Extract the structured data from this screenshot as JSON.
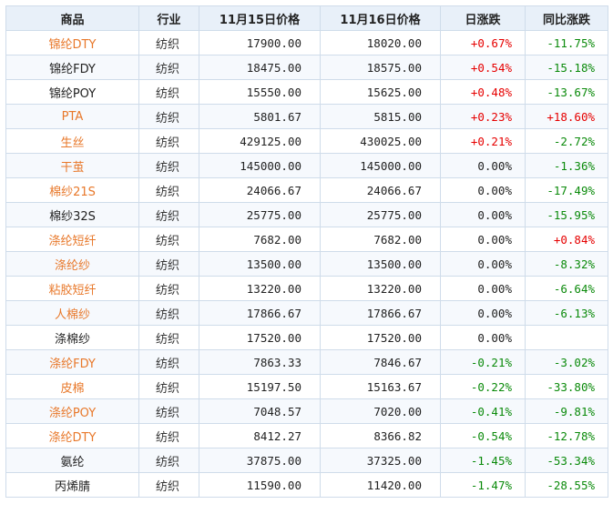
{
  "headers": [
    "商品",
    "行业",
    "11月15日价格",
    "11月16日价格",
    "日涨跌",
    "同比涨跌"
  ],
  "rows": [
    {
      "name": "锦纶DTY",
      "industry": "纺织",
      "p15": "17900.00",
      "p16": "18020.00",
      "daily": "+0.67%",
      "yoy": "-11.75%",
      "name_color": "#e8782a",
      "daily_dir": "up",
      "yoy_dir": "down"
    },
    {
      "name": "锦纶FDY",
      "industry": "纺织",
      "p15": "18475.00",
      "p16": "18575.00",
      "daily": "+0.54%",
      "yoy": "-15.18%",
      "name_color": "#222222",
      "daily_dir": "up",
      "yoy_dir": "down"
    },
    {
      "name": "锦纶POY",
      "industry": "纺织",
      "p15": "15550.00",
      "p16": "15625.00",
      "daily": "+0.48%",
      "yoy": "-13.67%",
      "name_color": "#222222",
      "daily_dir": "up",
      "yoy_dir": "down"
    },
    {
      "name": "PTA",
      "industry": "纺织",
      "p15": "5801.67",
      "p16": "5815.00",
      "daily": "+0.23%",
      "yoy": "+18.60%",
      "name_color": "#e8782a",
      "daily_dir": "up",
      "yoy_dir": "up"
    },
    {
      "name": "生丝",
      "industry": "纺织",
      "p15": "429125.00",
      "p16": "430025.00",
      "daily": "+0.21%",
      "yoy": "-2.72%",
      "name_color": "#e8782a",
      "daily_dir": "up",
      "yoy_dir": "down"
    },
    {
      "name": "干茧",
      "industry": "纺织",
      "p15": "145000.00",
      "p16": "145000.00",
      "daily": "0.00%",
      "yoy": "-1.36%",
      "name_color": "#e8782a",
      "daily_dir": "flat",
      "yoy_dir": "down"
    },
    {
      "name": "棉纱21S",
      "industry": "纺织",
      "p15": "24066.67",
      "p16": "24066.67",
      "daily": "0.00%",
      "yoy": "-17.49%",
      "name_color": "#e8782a",
      "daily_dir": "flat",
      "yoy_dir": "down"
    },
    {
      "name": "棉纱32S",
      "industry": "纺织",
      "p15": "25775.00",
      "p16": "25775.00",
      "daily": "0.00%",
      "yoy": "-15.95%",
      "name_color": "#222222",
      "daily_dir": "flat",
      "yoy_dir": "down"
    },
    {
      "name": "涤纶短纤",
      "industry": "纺织",
      "p15": "7682.00",
      "p16": "7682.00",
      "daily": "0.00%",
      "yoy": "+0.84%",
      "name_color": "#e8782a",
      "daily_dir": "flat",
      "yoy_dir": "up"
    },
    {
      "name": "涤纶纱",
      "industry": "纺织",
      "p15": "13500.00",
      "p16": "13500.00",
      "daily": "0.00%",
      "yoy": "-8.32%",
      "name_color": "#e8782a",
      "daily_dir": "flat",
      "yoy_dir": "down"
    },
    {
      "name": "粘胶短纤",
      "industry": "纺织",
      "p15": "13220.00",
      "p16": "13220.00",
      "daily": "0.00%",
      "yoy": "-6.64%",
      "name_color": "#e8782a",
      "daily_dir": "flat",
      "yoy_dir": "down"
    },
    {
      "name": "人棉纱",
      "industry": "纺织",
      "p15": "17866.67",
      "p16": "17866.67",
      "daily": "0.00%",
      "yoy": "-6.13%",
      "name_color": "#e8782a",
      "daily_dir": "flat",
      "yoy_dir": "down"
    },
    {
      "name": "涤棉纱",
      "industry": "纺织",
      "p15": "17520.00",
      "p16": "17520.00",
      "daily": "0.00%",
      "yoy": "",
      "name_color": "#222222",
      "daily_dir": "flat",
      "yoy_dir": "flat"
    },
    {
      "name": "涤纶FDY",
      "industry": "纺织",
      "p15": "7863.33",
      "p16": "7846.67",
      "daily": "-0.21%",
      "yoy": "-3.02%",
      "name_color": "#e8782a",
      "daily_dir": "down",
      "yoy_dir": "down"
    },
    {
      "name": "皮棉",
      "industry": "纺织",
      "p15": "15197.50",
      "p16": "15163.67",
      "daily": "-0.22%",
      "yoy": "-33.80%",
      "name_color": "#e8782a",
      "daily_dir": "down",
      "yoy_dir": "down"
    },
    {
      "name": "涤纶POY",
      "industry": "纺织",
      "p15": "7048.57",
      "p16": "7020.00",
      "daily": "-0.41%",
      "yoy": "-9.81%",
      "name_color": "#e8782a",
      "daily_dir": "down",
      "yoy_dir": "down"
    },
    {
      "name": "涤纶DTY",
      "industry": "纺织",
      "p15": "8412.27",
      "p16": "8366.82",
      "daily": "-0.54%",
      "yoy": "-12.78%",
      "name_color": "#e8782a",
      "daily_dir": "down",
      "yoy_dir": "down"
    },
    {
      "name": "氨纶",
      "industry": "纺织",
      "p15": "37875.00",
      "p16": "37325.00",
      "daily": "-1.45%",
      "yoy": "-53.34%",
      "name_color": "#222222",
      "daily_dir": "down",
      "yoy_dir": "down"
    },
    {
      "name": "丙烯腈",
      "industry": "纺织",
      "p15": "11590.00",
      "p16": "11420.00",
      "daily": "-1.47%",
      "yoy": "-28.55%",
      "name_color": "#222222",
      "daily_dir": "down",
      "yoy_dir": "down"
    }
  ]
}
